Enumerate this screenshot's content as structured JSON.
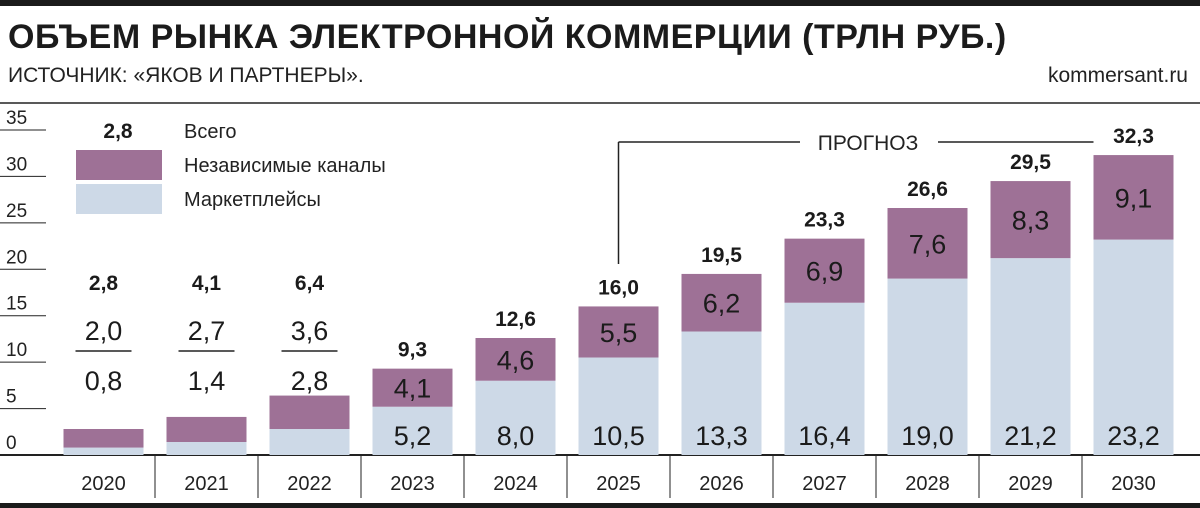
{
  "header": {
    "title": "ОБЪЕМ РЫНКА ЭЛЕКТРОННОЙ КОММЕРЦИИ (ТРЛН РУБ.)",
    "source": "ИСТОЧНИК: «ЯКОВ И ПАРТНЕРЫ».",
    "brand": "kommersant.ru"
  },
  "colors": {
    "independent": "#9e7196",
    "marketplaces": "#cdd9e7",
    "axis": "#222222"
  },
  "chart_data": {
    "type": "bar",
    "stacked": true,
    "title": "ОБЪЕМ РЫНКА ЭЛЕКТРОННОЙ КОММЕРЦИИ (ТРЛН РУБ.)",
    "categories": [
      "2020",
      "2021",
      "2022",
      "2023",
      "2024",
      "2025",
      "2026",
      "2027",
      "2028",
      "2029",
      "2030"
    ],
    "series": [
      {
        "name": "Маркетплейсы",
        "values": [
          0.8,
          1.4,
          2.8,
          5.2,
          8.0,
          10.5,
          13.3,
          16.4,
          19.0,
          21.2,
          23.2
        ]
      },
      {
        "name": "Независимые каналы",
        "values": [
          2.0,
          2.7,
          3.6,
          4.1,
          4.6,
          5.5,
          6.2,
          6.9,
          7.6,
          8.3,
          9.1
        ]
      }
    ],
    "totals": [
      2.8,
      4.1,
      6.4,
      9.3,
      12.6,
      16.0,
      19.5,
      23.3,
      26.6,
      29.5,
      32.3
    ],
    "labels": {
      "marketplaces": [
        "0,8",
        "1,4",
        "2,8",
        "5,2",
        "8,0",
        "10,5",
        "13,3",
        "16,4",
        "19,0",
        "21,2",
        "23,2"
      ],
      "independent": [
        "2,0",
        "2,7",
        "3,6",
        "4,1",
        "4,6",
        "5,5",
        "6,2",
        "6,9",
        "7,6",
        "8,3",
        "9,1"
      ],
      "totals": [
        "2,8",
        "4,1",
        "6,4",
        "9,3",
        "12,6",
        "16,0",
        "19,5",
        "23,3",
        "26,6",
        "29,5",
        "32,3"
      ]
    },
    "yticks": [
      "0",
      "5",
      "10",
      "15",
      "20",
      "25",
      "30",
      "35"
    ],
    "ylim": [
      0,
      35
    ],
    "legend": {
      "total_sample": "2,8",
      "total_label": "Всего",
      "independent_label": "Независимые каналы",
      "marketplaces_label": "Маркетплейсы"
    },
    "forecast_label": "ПРОГНОЗ",
    "forecast_from": "2025"
  }
}
